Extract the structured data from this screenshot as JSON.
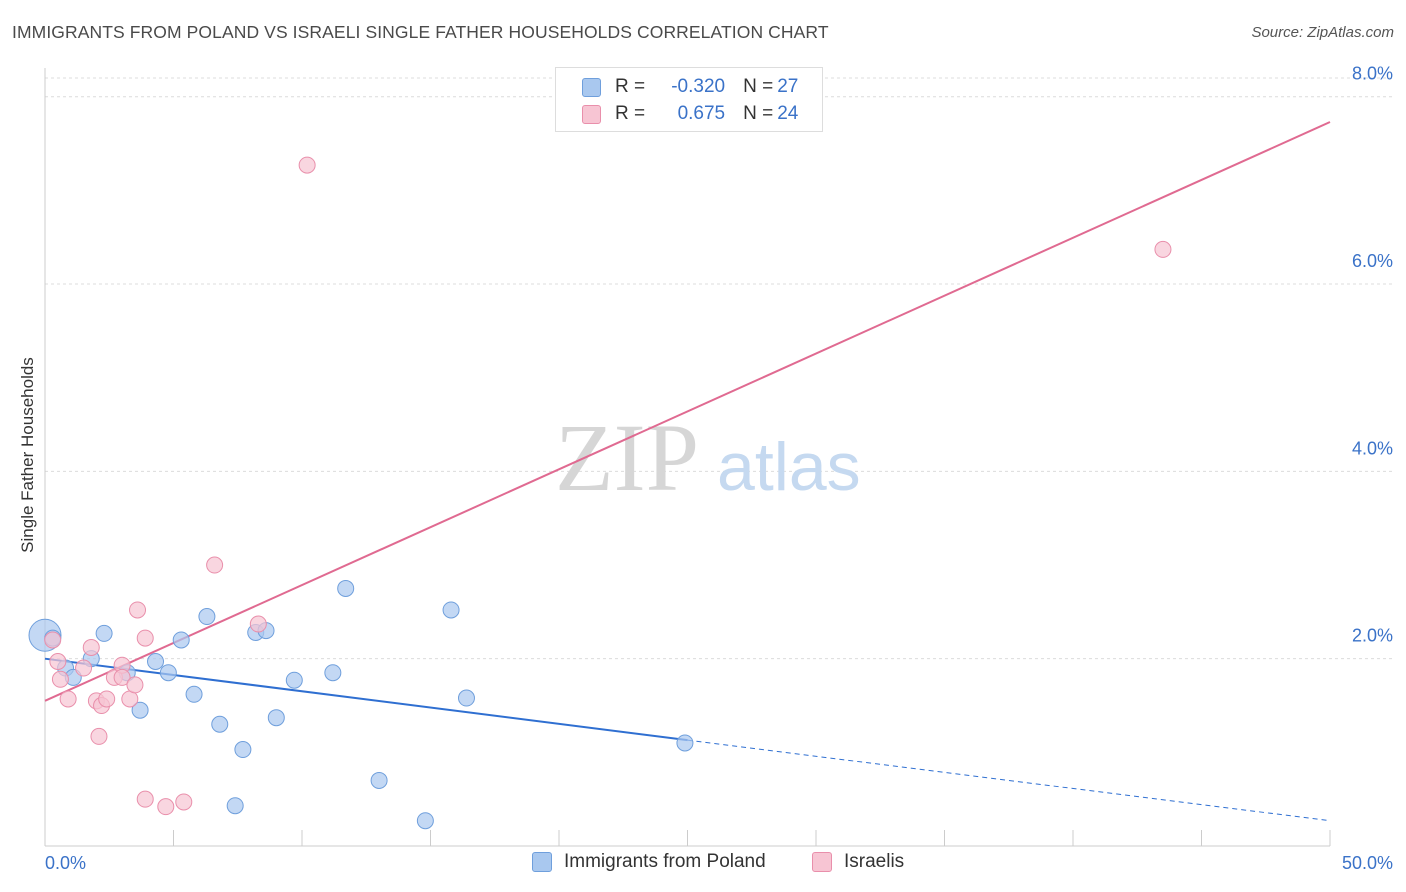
{
  "title": "IMMIGRANTS FROM POLAND VS ISRAELI SINGLE FATHER HOUSEHOLDS CORRELATION CHART",
  "source": "Source: ZipAtlas.com",
  "watermark": {
    "zip": "ZIP",
    "atlas": "atlas"
  },
  "legend": {
    "rows": [
      {
        "r_label": "R = ",
        "r_value": "-0.320",
        "n_label": "N = ",
        "n_value": "27",
        "color": "#a9c8ef",
        "border": "#6f9fdc"
      },
      {
        "r_label": "R = ",
        "r_value": "0.675",
        "n_label": "N = ",
        "n_value": "24",
        "color": "#f7c5d3",
        "border": "#e98fab"
      }
    ]
  },
  "bottom_legend": [
    {
      "label": "Immigrants from Poland",
      "color": "#a9c8ef",
      "border": "#6f9fdc"
    },
    {
      "label": "Israelis",
      "color": "#f7c5d3",
      "border": "#e98fab"
    }
  ],
  "chart_data": {
    "type": "scatter",
    "title": "IMMIGRANTS FROM POLAND VS ISRAELI SINGLE FATHER HOUSEHOLDS CORRELATION CHART",
    "xlabel": "",
    "ylabel": "Single Father Households",
    "xlim": [
      0,
      50
    ],
    "ylim": [
      0,
      8.2
    ],
    "x_tick_labels": [
      {
        "value": 0,
        "label": "0.0%"
      },
      {
        "value": 50,
        "label": "50.0%"
      }
    ],
    "y_ticks": [
      {
        "value": 2,
        "label": "2.0%"
      },
      {
        "value": 4,
        "label": "4.0%"
      },
      {
        "value": 6,
        "label": "6.0%"
      },
      {
        "value": 8,
        "label": "8.0%"
      }
    ],
    "grid": true,
    "series": [
      {
        "name": "Immigrants from Poland",
        "color": "#6f9fdc",
        "fill": "#a9c8ef",
        "line_color": "#2f6fd1",
        "trend": {
          "x0": 0,
          "y0": 2.0,
          "x1": 25,
          "y1": 1.13,
          "x_ext": 50,
          "y_ext": 0.27
        },
        "points": [
          [
            0.0,
            2.25
          ],
          [
            0.8,
            1.9
          ],
          [
            1.1,
            1.8
          ],
          [
            1.8,
            2.0
          ],
          [
            2.3,
            2.27
          ],
          [
            3.2,
            1.85
          ],
          [
            3.7,
            1.45
          ],
          [
            4.3,
            1.97
          ],
          [
            4.8,
            1.85
          ],
          [
            5.3,
            2.2
          ],
          [
            5.8,
            1.62
          ],
          [
            6.3,
            2.45
          ],
          [
            6.8,
            1.3
          ],
          [
            7.4,
            0.43
          ],
          [
            7.7,
            1.03
          ],
          [
            8.2,
            2.28
          ],
          [
            8.6,
            2.3
          ],
          [
            9.0,
            1.37
          ],
          [
            9.7,
            1.77
          ],
          [
            11.2,
            1.85
          ],
          [
            11.7,
            2.75
          ],
          [
            13.0,
            0.7
          ],
          [
            14.8,
            0.27
          ],
          [
            15.8,
            2.52
          ],
          [
            16.4,
            1.58
          ],
          [
            24.9,
            1.1
          ],
          [
            0.3,
            2.22
          ]
        ]
      },
      {
        "name": "Israelis",
        "color": "#e98fab",
        "fill": "#f7c5d3",
        "line_color": "#e06a91",
        "trend": {
          "x0": 0,
          "y0": 1.55,
          "x1": 50,
          "y1": 7.73
        },
        "points": [
          [
            0.3,
            2.2
          ],
          [
            0.5,
            1.97
          ],
          [
            0.6,
            1.78
          ],
          [
            0.9,
            1.57
          ],
          [
            1.5,
            1.9
          ],
          [
            1.8,
            2.12
          ],
          [
            2.0,
            1.55
          ],
          [
            2.1,
            1.17
          ],
          [
            2.2,
            1.5
          ],
          [
            2.4,
            1.57
          ],
          [
            2.7,
            1.8
          ],
          [
            3.0,
            1.93
          ],
          [
            3.0,
            1.8
          ],
          [
            3.3,
            1.57
          ],
          [
            3.5,
            1.72
          ],
          [
            3.6,
            2.52
          ],
          [
            3.9,
            0.5
          ],
          [
            3.9,
            2.22
          ],
          [
            4.7,
            0.42
          ],
          [
            5.4,
            0.47
          ],
          [
            6.6,
            3.0
          ],
          [
            8.3,
            2.37
          ],
          [
            10.2,
            7.27
          ],
          [
            43.5,
            6.37
          ]
        ]
      }
    ]
  }
}
